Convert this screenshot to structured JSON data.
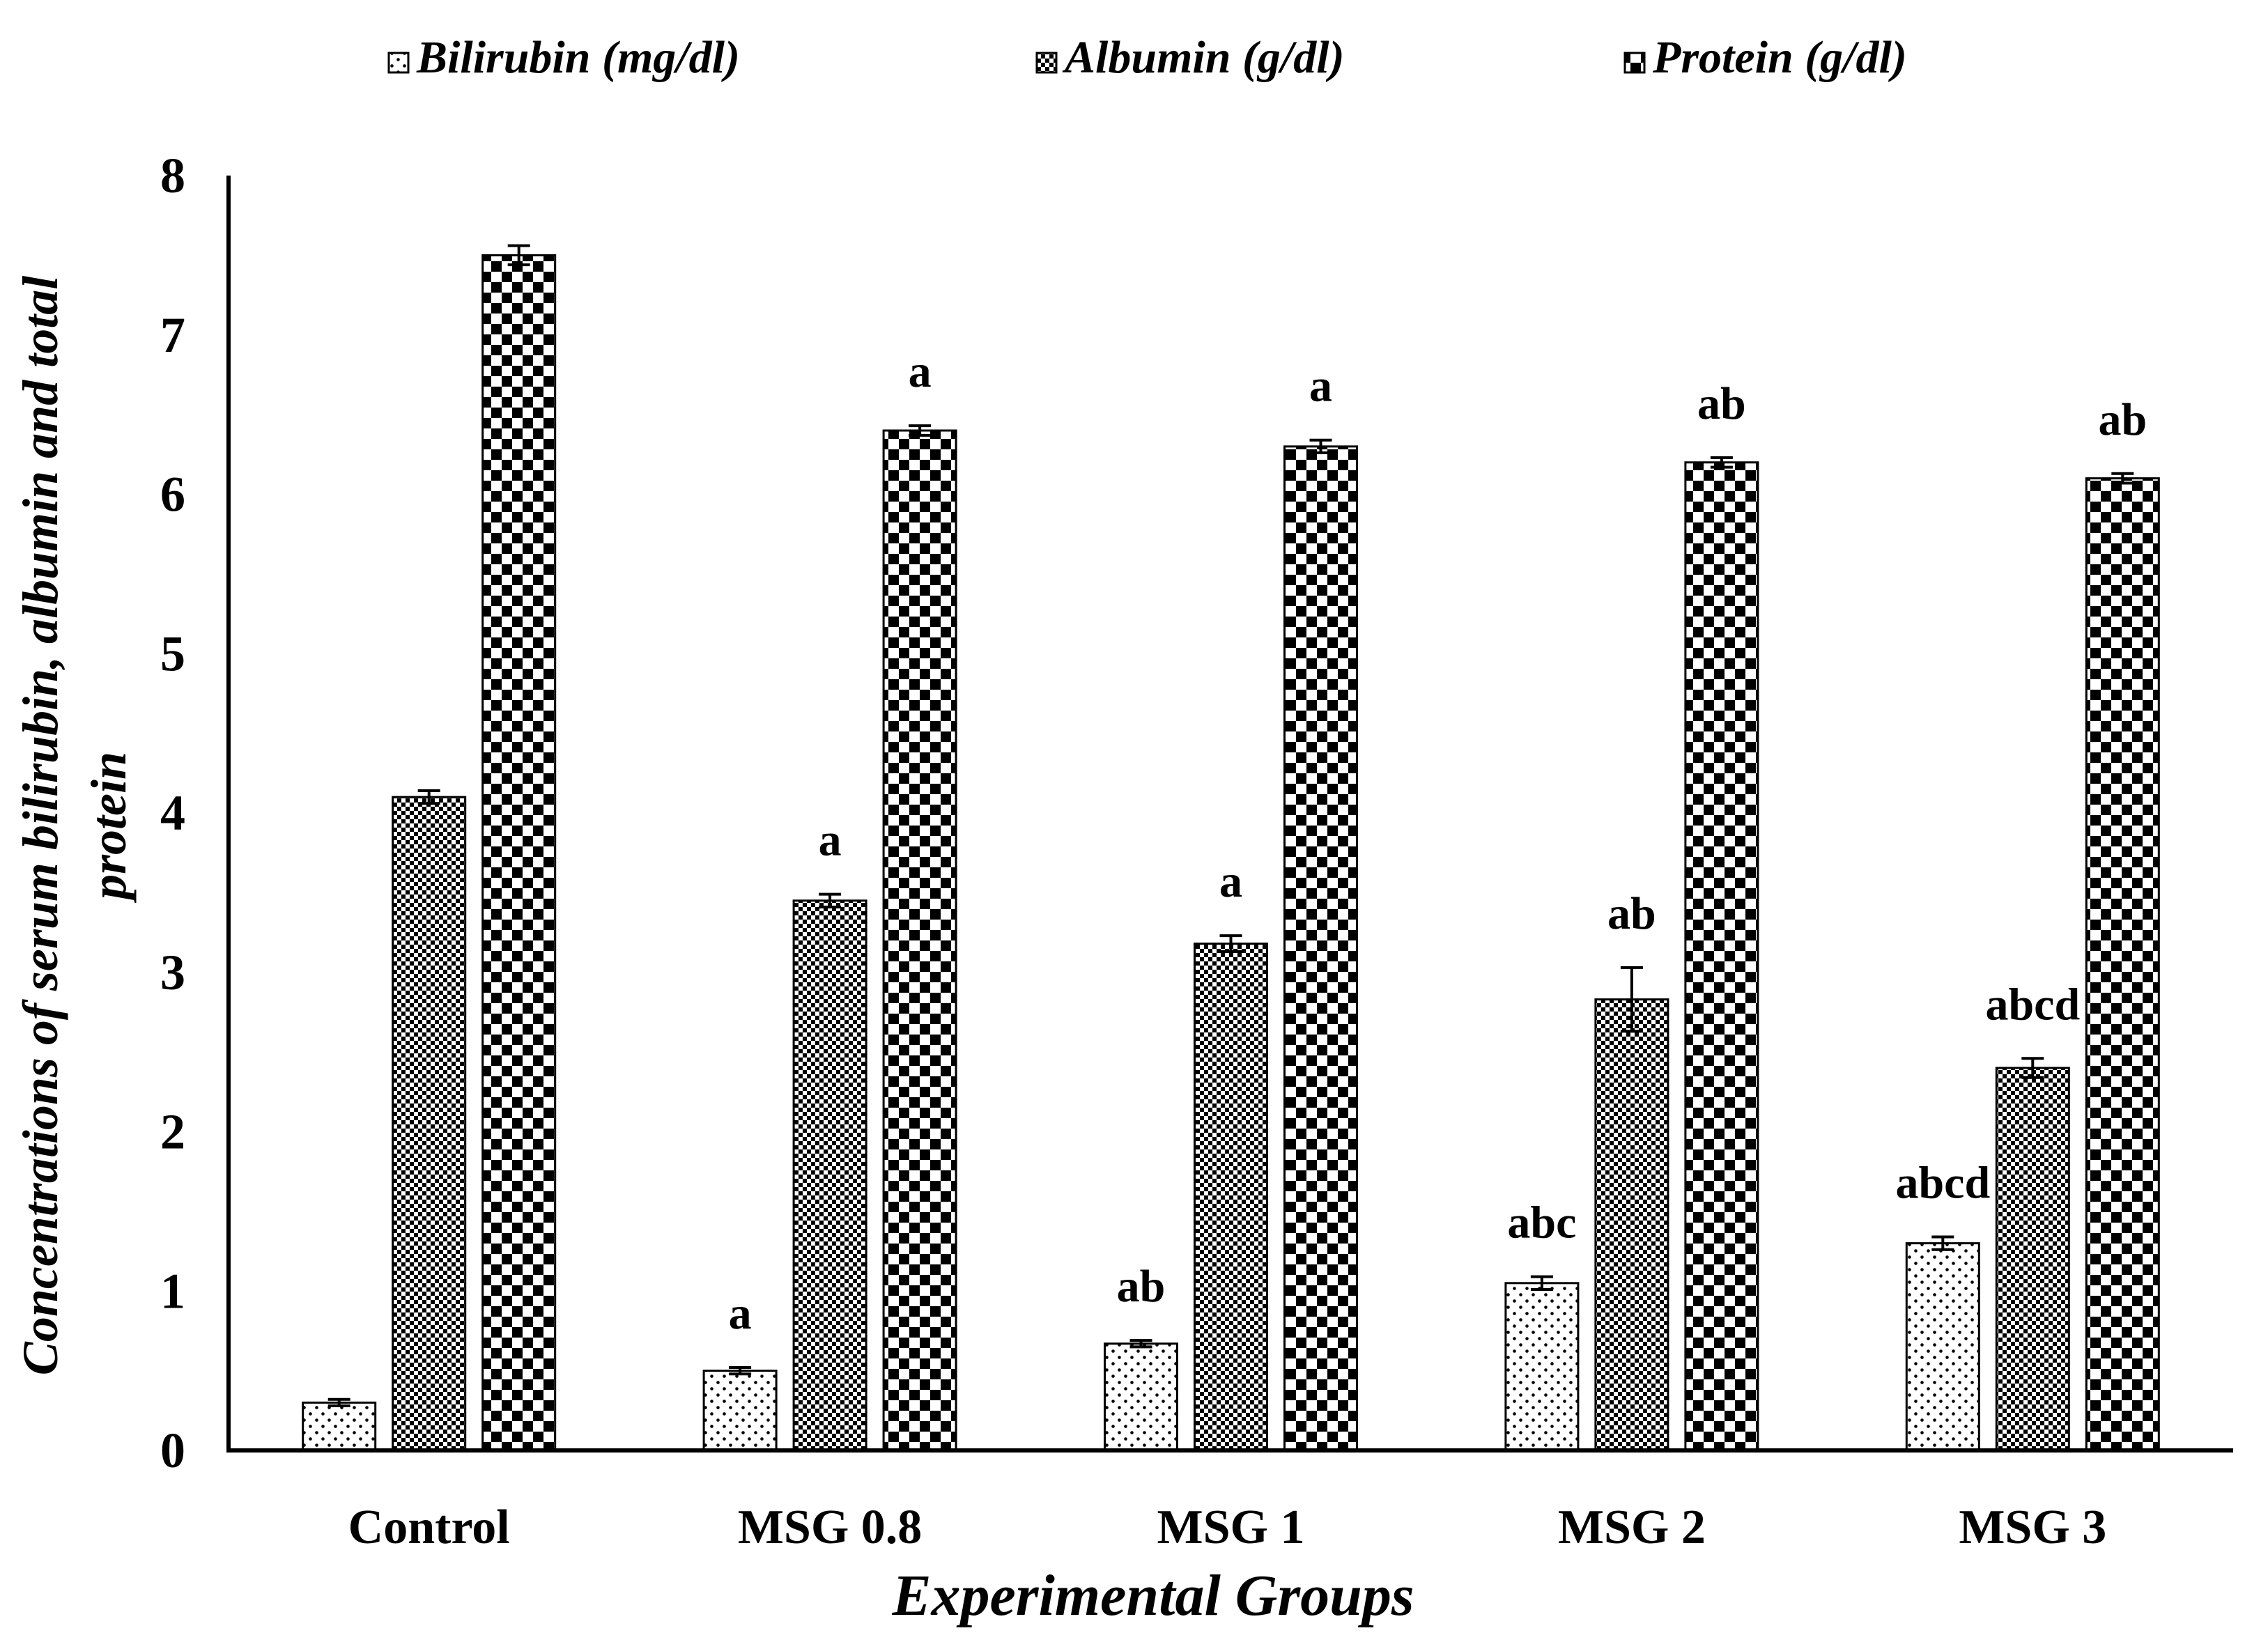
{
  "chart_data": {
    "type": "bar",
    "title": "",
    "xlabel": "Experimental Groups",
    "ylabel": "Concentrations of serum bilirubin, albumin and total protein",
    "ylabel_lines": [
      "Concentrations of serum bilirubin, albumin and total",
      "protein"
    ],
    "ylim": [
      0,
      8
    ],
    "yticks": [
      "0",
      "1",
      "2",
      "3",
      "4",
      "5",
      "6",
      "7",
      "8"
    ],
    "grid": false,
    "legend_position": "top",
    "categories": [
      "Control",
      "MSG 0.8",
      "MSG 1",
      "MSG 2",
      "MSG 3"
    ],
    "series": [
      {
        "name": "Bilirubin (mg/dl)",
        "pattern": "dots",
        "values": [
          0.3,
          0.5,
          0.67,
          1.05,
          1.3
        ],
        "errors": [
          0.02,
          0.02,
          0.02,
          0.04,
          0.04
        ],
        "labels": [
          "",
          "a",
          "ab",
          "abc",
          "abcd"
        ]
      },
      {
        "name": "Albumin (g/dl)",
        "pattern": "dense-check",
        "values": [
          4.1,
          3.45,
          3.18,
          2.83,
          2.4
        ],
        "errors": [
          0.04,
          0.04,
          0.05,
          0.2,
          0.06
        ],
        "labels": [
          "",
          "a",
          "a",
          "ab",
          "abcd"
        ]
      },
      {
        "name": "Protein (g/dl)",
        "pattern": "checker",
        "values": [
          7.5,
          6.4,
          6.3,
          6.2,
          6.1
        ],
        "errors": [
          0.06,
          0.03,
          0.04,
          0.03,
          0.03
        ],
        "labels": [
          "",
          "a",
          "a",
          "ab",
          "ab"
        ]
      }
    ]
  }
}
